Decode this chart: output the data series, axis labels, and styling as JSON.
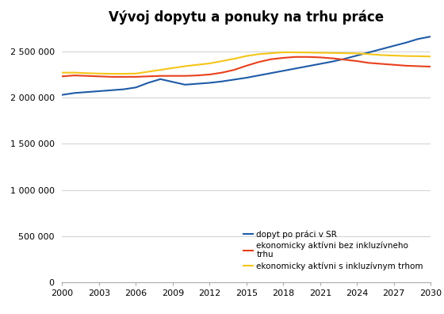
{
  "title": "Vývoj dopytu a ponuky na trhu práce",
  "years": [
    2000,
    2001,
    2002,
    2003,
    2004,
    2005,
    2006,
    2007,
    2008,
    2009,
    2010,
    2011,
    2012,
    2013,
    2014,
    2015,
    2016,
    2017,
    2018,
    2019,
    2020,
    2021,
    2022,
    2023,
    2024,
    2025,
    2026,
    2027,
    2028,
    2029,
    2030
  ],
  "dopyt": [
    2030000,
    2050000,
    2060000,
    2070000,
    2080000,
    2090000,
    2110000,
    2160000,
    2200000,
    2170000,
    2140000,
    2150000,
    2160000,
    2175000,
    2195000,
    2215000,
    2240000,
    2265000,
    2290000,
    2315000,
    2340000,
    2365000,
    2390000,
    2420000,
    2455000,
    2490000,
    2525000,
    2560000,
    2595000,
    2635000,
    2660000
  ],
  "bez_inkluz": [
    2230000,
    2240000,
    2235000,
    2230000,
    2225000,
    2225000,
    2225000,
    2230000,
    2235000,
    2235000,
    2235000,
    2240000,
    2250000,
    2270000,
    2300000,
    2345000,
    2385000,
    2415000,
    2430000,
    2440000,
    2440000,
    2435000,
    2425000,
    2410000,
    2395000,
    2375000,
    2365000,
    2355000,
    2345000,
    2340000,
    2335000
  ],
  "s_inkluz": [
    2270000,
    2270000,
    2265000,
    2260000,
    2258000,
    2258000,
    2260000,
    2280000,
    2300000,
    2320000,
    2340000,
    2355000,
    2370000,
    2395000,
    2420000,
    2450000,
    2470000,
    2480000,
    2490000,
    2490000,
    2488000,
    2485000,
    2483000,
    2480000,
    2478000,
    2470000,
    2460000,
    2455000,
    2450000,
    2448000,
    2445000
  ],
  "line_colors": [
    "#1f5ba8",
    "#e8401c",
    "#f5c518"
  ],
  "legend_labels": [
    "dopyt po práci v SR",
    "ekonomicky aktívni bez inkluzívneho\ntrhu",
    "ekonomicky aktívni s inkluzívnym trhom"
  ],
  "ylim": [
    0,
    2750000
  ],
  "yticks": [
    0,
    500000,
    1000000,
    1500000,
    2000000,
    2500000
  ],
  "xlim": [
    2000,
    2030
  ],
  "xticks": [
    2000,
    2003,
    2006,
    2009,
    2012,
    2015,
    2018,
    2021,
    2024,
    2027,
    2030
  ],
  "background_color": "#ffffff",
  "grid_color": "#d0d0d0",
  "title_fontsize": 12,
  "tick_fontsize": 8,
  "legend_fontsize": 7.5
}
